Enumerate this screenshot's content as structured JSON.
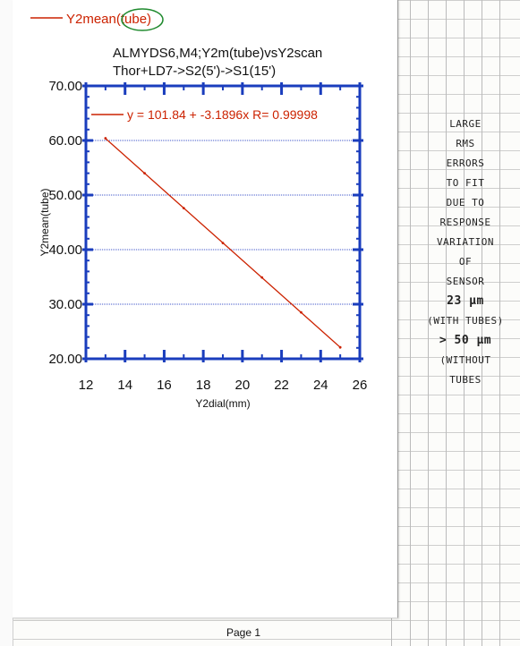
{
  "page": {
    "footer": "Page 1"
  },
  "chart_data": {
    "type": "scatter",
    "title_lines": [
      "ALMYDS6,M4;Y2m(tube)vsY2scan",
      "Thor+LD7->S2(5')->S1(15')"
    ],
    "xlabel": "Y2dial(mm)",
    "ylabel": "Y2mean(tube)",
    "xlim": [
      12,
      26
    ],
    "ylim": [
      20,
      70
    ],
    "x_ticks": [
      12,
      14,
      16,
      18,
      20,
      22,
      24,
      26
    ],
    "x_tick_labels": [
      "12",
      "14",
      "16",
      "18",
      "20",
      "22",
      "24",
      "26"
    ],
    "y_ticks": [
      20,
      30,
      40,
      50,
      60,
      70
    ],
    "y_tick_labels": [
      "20.00",
      "30.00",
      "40.00",
      "50.00",
      "60.00",
      "70.00"
    ],
    "legend": {
      "label": "Y2mean(tube)",
      "placement": "top-left"
    },
    "fit": {
      "label": "y = 101.84 + -3.1896x R= 0.99998",
      "intercept": 101.84,
      "slope": -3.1896
    },
    "series": [
      {
        "name": "Y2mean(tube)",
        "x": [
          13,
          15,
          17,
          19,
          21,
          23,
          25
        ],
        "y": [
          60.4,
          54.0,
          47.6,
          41.2,
          34.9,
          28.5,
          22.1
        ]
      }
    ],
    "grid": true,
    "colors": {
      "data": "#cc2200",
      "axes": "#1a3dbd",
      "grid": "#3d53c9",
      "annotation": "#1f8a2e"
    }
  },
  "note": {
    "lines": [
      "LARGE",
      "RMS",
      "ERRORS",
      "TO FIT",
      "DUE TO",
      "RESPONSE",
      "VARIATION",
      "OF",
      "SENSOR",
      "23 μm",
      "(WITH TUBES)",
      "> 50 μm",
      "(WITHOUT",
      "TUBES"
    ]
  }
}
